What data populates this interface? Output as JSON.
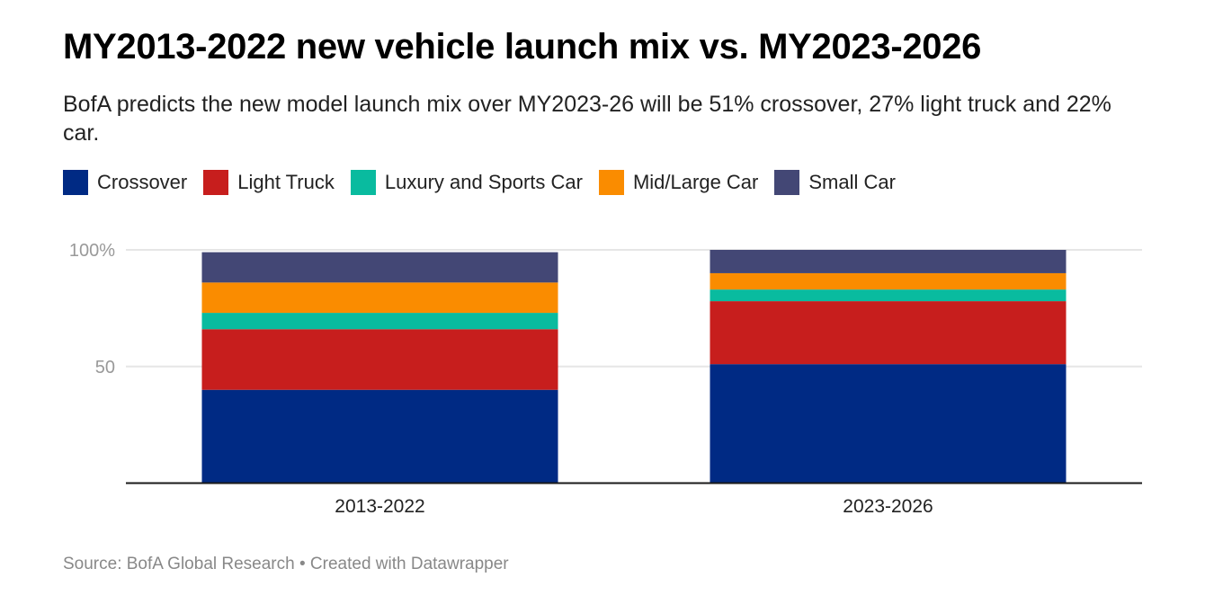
{
  "title": "MY2013-2022 new vehicle launch mix vs. MY2023-2026",
  "subtitle": "BofA predicts the new model launch mix over MY2023-26 will be 51% crossover, 27% light truck and 22% car.",
  "footer": {
    "source": "Source: BofA Global Research",
    "separator": " • ",
    "credit": "Created with Datawrapper"
  },
  "chart_data": {
    "type": "bar",
    "stacked": true,
    "categories": [
      "2013-2022",
      "2023-2026"
    ],
    "series": [
      {
        "name": "Crossover",
        "color": "#002a84",
        "values": [
          40,
          51
        ]
      },
      {
        "name": "Light Truck",
        "color": "#c71e1d",
        "values": [
          26,
          27
        ]
      },
      {
        "name": "Luxury and Sports Car",
        "color": "#09bb9f",
        "values": [
          7,
          5
        ]
      },
      {
        "name": "Mid/Large Car",
        "color": "#fa8c00",
        "values": [
          13,
          7
        ]
      },
      {
        "name": "Small Car",
        "color": "#434775",
        "values": [
          13,
          10
        ]
      }
    ],
    "ylim": [
      0,
      100
    ],
    "yticks": [
      {
        "value": 50,
        "label": "50"
      },
      {
        "value": 100,
        "label": "100%"
      }
    ],
    "grid": true,
    "legend": "top-left"
  }
}
